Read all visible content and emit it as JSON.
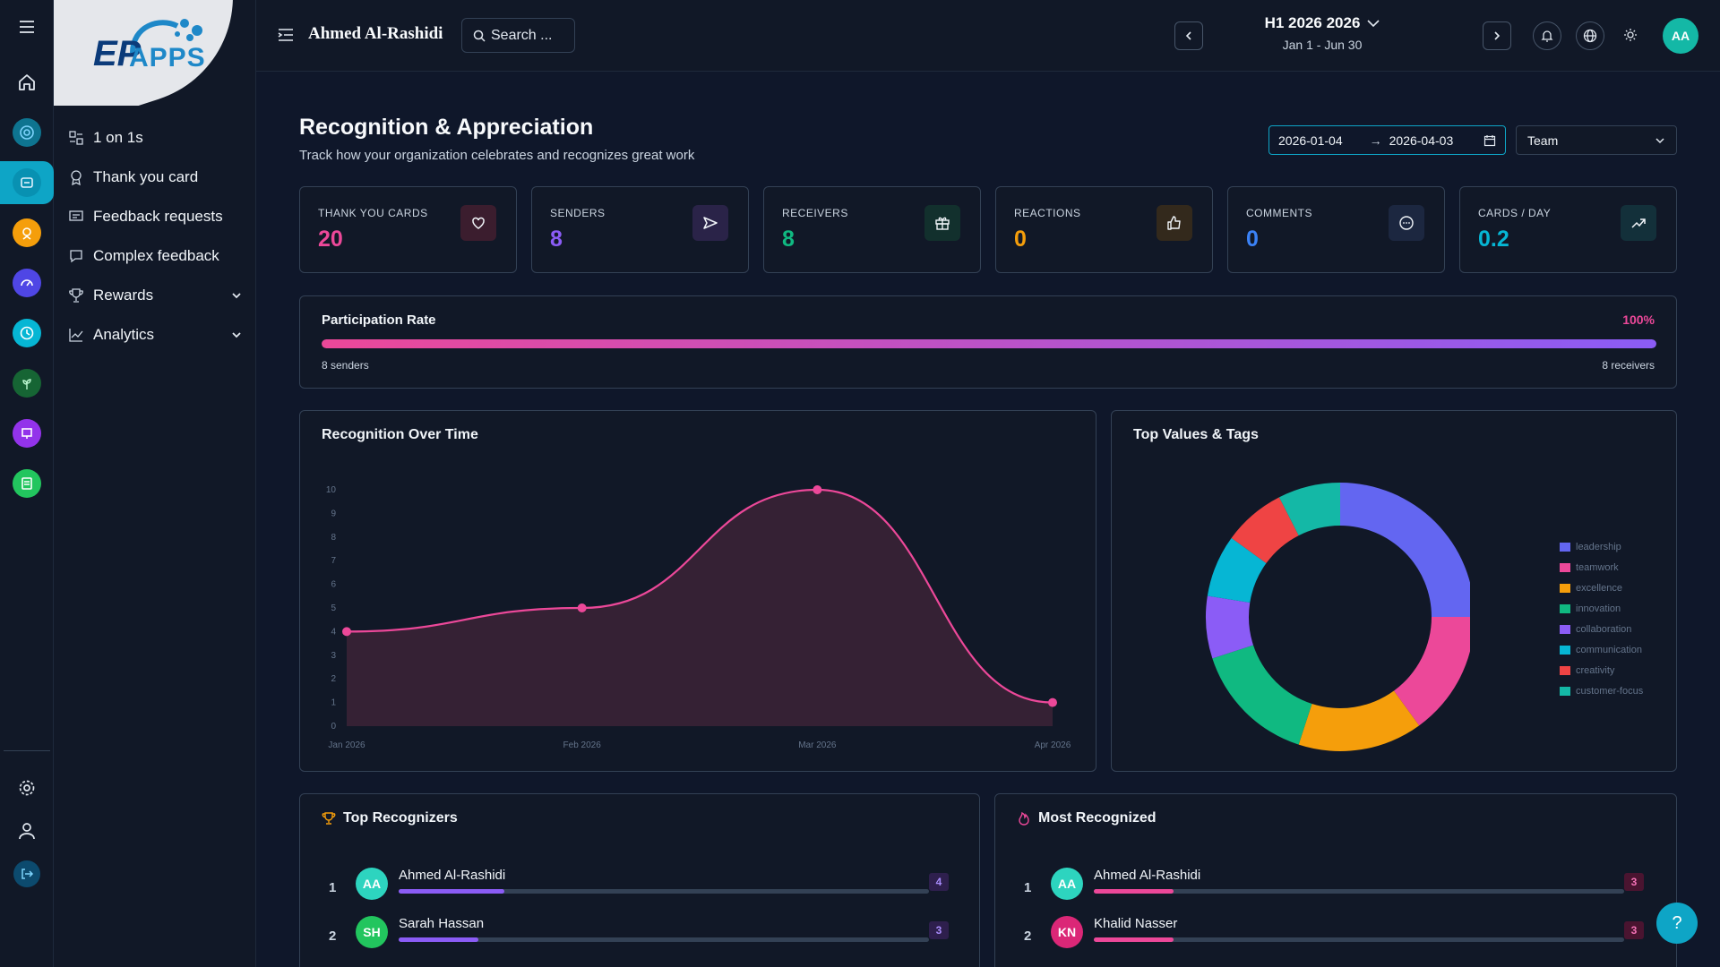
{
  "colors": {
    "accent": "#0ea5c6",
    "pink": "#ec4899",
    "purple": "#8b5cf6",
    "green": "#10b981",
    "orange": "#f59e0b",
    "blue": "#3b82f6",
    "cyan": "#06b6d4"
  },
  "rail": {
    "icons": [
      "menu-icon",
      "home-icon",
      "target-icon",
      "thank-you-app-icon",
      "rewards-app-icon",
      "gauge-app-icon",
      "clock-app-icon",
      "plant-app-icon",
      "presentation-app-icon",
      "survey-app-icon",
      "settings-icon",
      "user-icon",
      "logout-icon"
    ]
  },
  "logo": {
    "prefix": "EP",
    "name": "APPS"
  },
  "sidebar": {
    "items": [
      {
        "label": "1 on 1s",
        "icon": "people-icon"
      },
      {
        "label": "Thank you card",
        "icon": "badge-icon"
      },
      {
        "label": "Feedback requests",
        "icon": "feedback-request-icon"
      },
      {
        "label": "Complex feedback",
        "icon": "chat-icon"
      },
      {
        "label": "Rewards",
        "icon": "trophy-icon",
        "expandable": true
      },
      {
        "label": "Analytics",
        "icon": "chart-icon",
        "expandable": true
      }
    ]
  },
  "topbar": {
    "user_name": "Ahmed Al-Rashidi",
    "search_placeholder": "Search ...",
    "period_title": "H1 2026 2026",
    "period_range": "Jan 1 - Jun 30",
    "avatar_initials": "AA"
  },
  "page": {
    "title": "Recognition & Appreciation",
    "subtitle": "Track how your organization celebrates and recognizes great work",
    "date_from": "2026-01-04",
    "date_to": "2026-04-03",
    "scope": "Team"
  },
  "stats": [
    {
      "label": "THANK YOU CARDS",
      "value": "20",
      "color": "#ec4899",
      "icon": "heart-icon"
    },
    {
      "label": "SENDERS",
      "value": "8",
      "color": "#8b5cf6",
      "icon": "send-icon"
    },
    {
      "label": "RECEIVERS",
      "value": "8",
      "color": "#10b981",
      "icon": "gift-icon"
    },
    {
      "label": "REACTIONS",
      "value": "0",
      "color": "#f59e0b",
      "icon": "thumbs-up-icon"
    },
    {
      "label": "COMMENTS",
      "value": "0",
      "color": "#3b82f6",
      "icon": "comment-icon"
    },
    {
      "label": "CARDS / DAY",
      "value": "0.2",
      "color": "#06b6d4",
      "icon": "trend-up-icon"
    }
  ],
  "participation": {
    "title": "Participation Rate",
    "percent_label": "100%",
    "percent": 100,
    "senders_label": "8 senders",
    "receivers_label": "8 receivers"
  },
  "panels": {
    "recognition_over_time": "Recognition Over Time",
    "top_values": "Top Values & Tags",
    "top_recognizers": "Top Recognizers",
    "most_recognized": "Most Recognized"
  },
  "chart_data": [
    {
      "type": "area",
      "title": "Recognition Over Time",
      "x": [
        "Jan 2026",
        "Feb 2026",
        "Mar 2026",
        "Apr 2026"
      ],
      "values": [
        4,
        5,
        10,
        1
      ],
      "ylim": [
        0,
        10
      ],
      "yticks": [
        "0",
        "1",
        "2",
        "3",
        "4",
        "5",
        "6",
        "7",
        "8",
        "9",
        "10"
      ],
      "color": "#ec4899",
      "grid": false
    },
    {
      "type": "pie",
      "title": "Top Values & Tags",
      "donut": true,
      "categories": [
        "leadership",
        "teamwork",
        "excellence",
        "innovation",
        "collaboration",
        "communication",
        "creativity",
        "customer-focus"
      ],
      "values": [
        5,
        3,
        3,
        3,
        1.5,
        1.5,
        1.5,
        1.5
      ],
      "colors": [
        "#6366f1",
        "#ec4899",
        "#f59e0b",
        "#10b981",
        "#8b5cf6",
        "#06b6d4",
        "#ef4444",
        "#14b8a6"
      ],
      "legend": "right"
    }
  ],
  "top_recognizers": [
    {
      "rank": "1",
      "initials": "AA",
      "name": "Ahmed Al-Rashidi",
      "count": "4",
      "fraction": 0.2,
      "avatar_color": "#2dd4bf"
    },
    {
      "rank": "2",
      "initials": "SH",
      "name": "Sarah Hassan",
      "count": "3",
      "fraction": 0.15,
      "avatar_color": "#22c55e"
    }
  ],
  "most_recognized": [
    {
      "rank": "1",
      "initials": "AA",
      "name": "Ahmed Al-Rashidi",
      "count": "3",
      "fraction": 0.15,
      "avatar_color": "#2dd4bf"
    },
    {
      "rank": "2",
      "initials": "KN",
      "name": "Khalid Nasser",
      "count": "3",
      "fraction": 0.15,
      "avatar_color": "#db2777"
    }
  ],
  "help_label": "?"
}
